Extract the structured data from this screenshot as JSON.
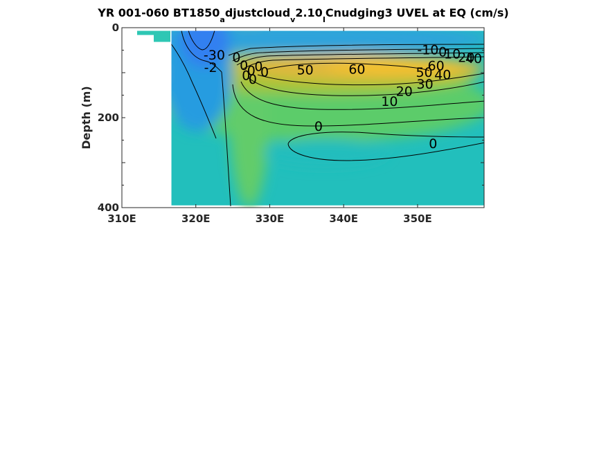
{
  "chart_data": {
    "type": "heatmap",
    "title": {
      "main": "YR 001-060 BT1850",
      "sub1": "a",
      "mid1": "djustcloud",
      "sub2": "v",
      "mid2": "2.10",
      "sub3": "I",
      "end": "Cnudging3 UVEL at EQ (cm/s)"
    },
    "xlabel": "",
    "ylabel": "Depth (m)",
    "xlim": [
      310,
      359
    ],
    "ylim": [
      400,
      0
    ],
    "x_ticks": [
      {
        "value": 310,
        "label": "310E"
      },
      {
        "value": 320,
        "label": "320E"
      },
      {
        "value": 330,
        "label": "330E"
      },
      {
        "value": 340,
        "label": "340E"
      },
      {
        "value": 350,
        "label": "350E"
      }
    ],
    "y_ticks": [
      {
        "value": 0,
        "label": "0"
      },
      {
        "value": 200,
        "label": "200"
      },
      {
        "value": 400,
        "label": "400"
      }
    ],
    "grid": false,
    "colormap": "parula",
    "color_range": [
      -60,
      80
    ],
    "land_color": "#ffffff",
    "ocean_region": {
      "west_edge_lon": 316.7,
      "top_depth": 7,
      "bottom_depth": 395
    },
    "features": [
      {
        "name": "surface westward current core",
        "lon": 321.5,
        "depth": 45,
        "value": -40
      },
      {
        "name": "equatorial undercurrent core",
        "lon": 342,
        "depth": 90,
        "value": 68
      }
    ],
    "contour_labels": [
      {
        "text": "-30",
        "lon": 322.5,
        "depth": 62
      },
      {
        "text": "-2",
        "lon": 322.0,
        "depth": 90
      },
      {
        "text": "0",
        "lon": 325.5,
        "depth": 68
      },
      {
        "text": "0",
        "lon": 326.5,
        "depth": 85
      },
      {
        "text": "0",
        "lon": 327.5,
        "depth": 97
      },
      {
        "text": "0",
        "lon": 328.5,
        "depth": 88
      },
      {
        "text": "0",
        "lon": 329.3,
        "depth": 100
      },
      {
        "text": "0",
        "lon": 326.8,
        "depth": 108
      },
      {
        "text": "0",
        "lon": 327.7,
        "depth": 116
      },
      {
        "text": "50",
        "lon": 334.8,
        "depth": 95
      },
      {
        "text": "60",
        "lon": 341.8,
        "depth": 94
      },
      {
        "text": "-10",
        "lon": 351.4,
        "depth": 51
      },
      {
        "text": "0",
        "lon": 353.4,
        "depth": 55
      },
      {
        "text": "10",
        "lon": 354.7,
        "depth": 60
      },
      {
        "text": "20",
        "lon": 356.6,
        "depth": 68
      },
      {
        "text": "40",
        "lon": 357.6,
        "depth": 70
      },
      {
        "text": "60",
        "lon": 352.5,
        "depth": 86
      },
      {
        "text": "50",
        "lon": 350.9,
        "depth": 101
      },
      {
        "text": "40",
        "lon": 353.4,
        "depth": 106
      },
      {
        "text": "30",
        "lon": 351.0,
        "depth": 127
      },
      {
        "text": "20",
        "lon": 348.2,
        "depth": 143
      },
      {
        "text": "10",
        "lon": 346.2,
        "depth": 165
      },
      {
        "text": "0",
        "lon": 336.6,
        "depth": 221
      },
      {
        "text": "0",
        "lon": 352.1,
        "depth": 259
      }
    ]
  }
}
